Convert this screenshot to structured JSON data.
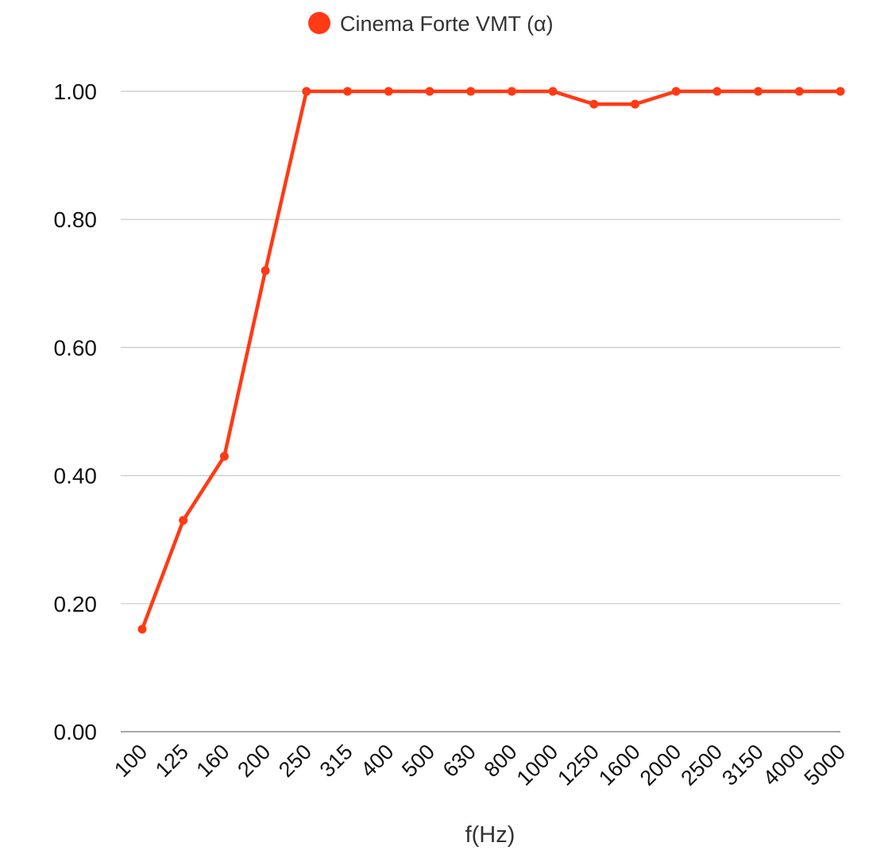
{
  "chart_data": {
    "type": "line",
    "title": "",
    "xlabel": "f(Hz)",
    "ylabel": "",
    "categories": [
      "100",
      "125",
      "160",
      "200",
      "250",
      "315",
      "400",
      "500",
      "630",
      "800",
      "1000",
      "1250",
      "1600",
      "2000",
      "2500",
      "3150",
      "4000",
      "5000"
    ],
    "series": [
      {
        "name": "Cinema Forte VMT (α)",
        "color": "#ff3a14",
        "values": [
          0.16,
          0.33,
          0.43,
          0.72,
          1.0,
          1.0,
          1.0,
          1.0,
          1.0,
          1.0,
          1.0,
          0.98,
          0.98,
          1.0,
          1.0,
          1.0,
          1.0,
          1.0
        ]
      }
    ],
    "ylim": [
      0,
      1
    ],
    "yticks": [
      "0.00",
      "0.20",
      "0.40",
      "0.60",
      "0.80",
      "1.00"
    ],
    "grid": true,
    "legend_position": "top-center"
  }
}
